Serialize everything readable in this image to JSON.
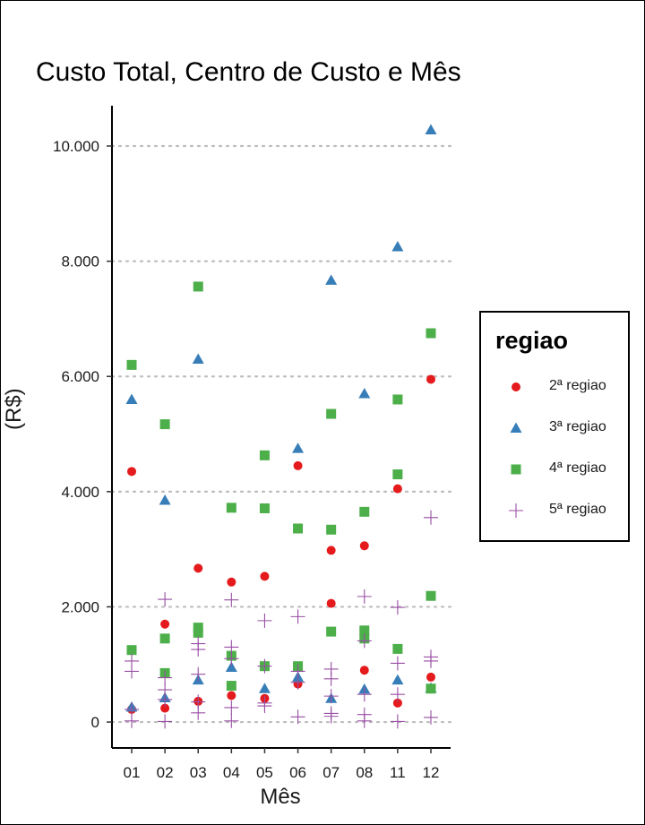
{
  "chart_data": {
    "type": "scatter",
    "title": "Custo Total, Centro de Custo e Mês",
    "xlabel": "Mês",
    "ylabel": "(R$)",
    "categories": [
      "01",
      "02",
      "03",
      "04",
      "05",
      "06",
      "07",
      "08",
      "11",
      "12"
    ],
    "ylim": [
      -450,
      10700
    ],
    "yticks": [
      0,
      2000,
      4000,
      6000,
      8000,
      10000
    ],
    "ytick_labels": [
      "0",
      "2.000",
      "4.000",
      "6.000",
      "8.000",
      "10.000"
    ],
    "grid": "horizontal dotted",
    "legend": {
      "title": "regiao",
      "position": "right"
    },
    "series": [
      {
        "name": "2ª regiao",
        "color": "#e41a1c",
        "shape": "circle",
        "points": [
          [
            "01",
            4350
          ],
          [
            "01",
            220
          ],
          [
            "02",
            1700
          ],
          [
            "02",
            240
          ],
          [
            "03",
            2670
          ],
          [
            "03",
            360
          ],
          [
            "04",
            2430
          ],
          [
            "04",
            460
          ],
          [
            "05",
            2530
          ],
          [
            "05",
            410
          ],
          [
            "06",
            4450
          ],
          [
            "06",
            660
          ],
          [
            "07",
            2980
          ],
          [
            "07",
            2060
          ],
          [
            "08",
            3060
          ],
          [
            "08",
            900
          ],
          [
            "11",
            4050
          ],
          [
            "11",
            330
          ],
          [
            "12",
            5950
          ],
          [
            "12",
            780
          ]
        ]
      },
      {
        "name": "3ª regiao",
        "color": "#377eb8",
        "shape": "triangle",
        "points": [
          [
            "01",
            5600
          ],
          [
            "01",
            260
          ],
          [
            "02",
            3850
          ],
          [
            "02",
            420
          ],
          [
            "03",
            6300
          ],
          [
            "03",
            730
          ],
          [
            "04",
            950
          ],
          [
            "05",
            580
          ],
          [
            "06",
            4750
          ],
          [
            "06",
            780
          ],
          [
            "07",
            7670
          ],
          [
            "07",
            410
          ],
          [
            "08",
            5700
          ],
          [
            "08",
            570
          ],
          [
            "11",
            8250
          ],
          [
            "11",
            730
          ],
          [
            "12",
            10280
          ],
          [
            "12",
            590
          ]
        ]
      },
      {
        "name": "4ª regiao",
        "color": "#4daf4a",
        "shape": "square",
        "points": [
          [
            "01",
            6200
          ],
          [
            "01",
            1250
          ],
          [
            "02",
            5170
          ],
          [
            "02",
            1450
          ],
          [
            "02",
            850
          ],
          [
            "03",
            7560
          ],
          [
            "03",
            1640
          ],
          [
            "03",
            1550
          ],
          [
            "04",
            3720
          ],
          [
            "04",
            1150
          ],
          [
            "04",
            630
          ],
          [
            "05",
            4630
          ],
          [
            "05",
            3710
          ],
          [
            "05",
            970
          ],
          [
            "06",
            3360
          ],
          [
            "06",
            970
          ],
          [
            "07",
            5350
          ],
          [
            "07",
            3340
          ],
          [
            "07",
            1570
          ],
          [
            "08",
            3650
          ],
          [
            "08",
            1590
          ],
          [
            "08",
            1450
          ],
          [
            "11",
            5600
          ],
          [
            "11",
            4300
          ],
          [
            "11",
            1270
          ],
          [
            "12",
            6750
          ],
          [
            "12",
            2190
          ],
          [
            "12",
            580
          ]
        ]
      },
      {
        "name": "5ª regiao",
        "color": "#984ea3",
        "shape": "cross",
        "points": [
          [
            "01",
            1060
          ],
          [
            "01",
            880
          ],
          [
            "01",
            220
          ],
          [
            "01",
            20
          ],
          [
            "02",
            2130
          ],
          [
            "02",
            770
          ],
          [
            "02",
            560
          ],
          [
            "02",
            390
          ],
          [
            "02",
            10
          ],
          [
            "03",
            1360
          ],
          [
            "03",
            1260
          ],
          [
            "03",
            830
          ],
          [
            "03",
            350
          ],
          [
            "03",
            160
          ],
          [
            "04",
            2120
          ],
          [
            "04",
            1300
          ],
          [
            "04",
            1100
          ],
          [
            "04",
            250
          ],
          [
            "04",
            20
          ],
          [
            "05",
            1760
          ],
          [
            "05",
            970
          ],
          [
            "05",
            330
          ],
          [
            "05",
            280
          ],
          [
            "06",
            1830
          ],
          [
            "06",
            880
          ],
          [
            "06",
            690
          ],
          [
            "06",
            90
          ],
          [
            "07",
            920
          ],
          [
            "07",
            750
          ],
          [
            "07",
            450
          ],
          [
            "07",
            150
          ],
          [
            "07",
            100
          ],
          [
            "08",
            2180
          ],
          [
            "08",
            1410
          ],
          [
            "08",
            480
          ],
          [
            "08",
            130
          ],
          [
            "08",
            20
          ],
          [
            "11",
            1990
          ],
          [
            "11",
            1020
          ],
          [
            "11",
            480
          ],
          [
            "11",
            10
          ],
          [
            "12",
            3550
          ],
          [
            "12",
            1130
          ],
          [
            "12",
            1060
          ],
          [
            "12",
            80
          ]
        ]
      }
    ]
  }
}
